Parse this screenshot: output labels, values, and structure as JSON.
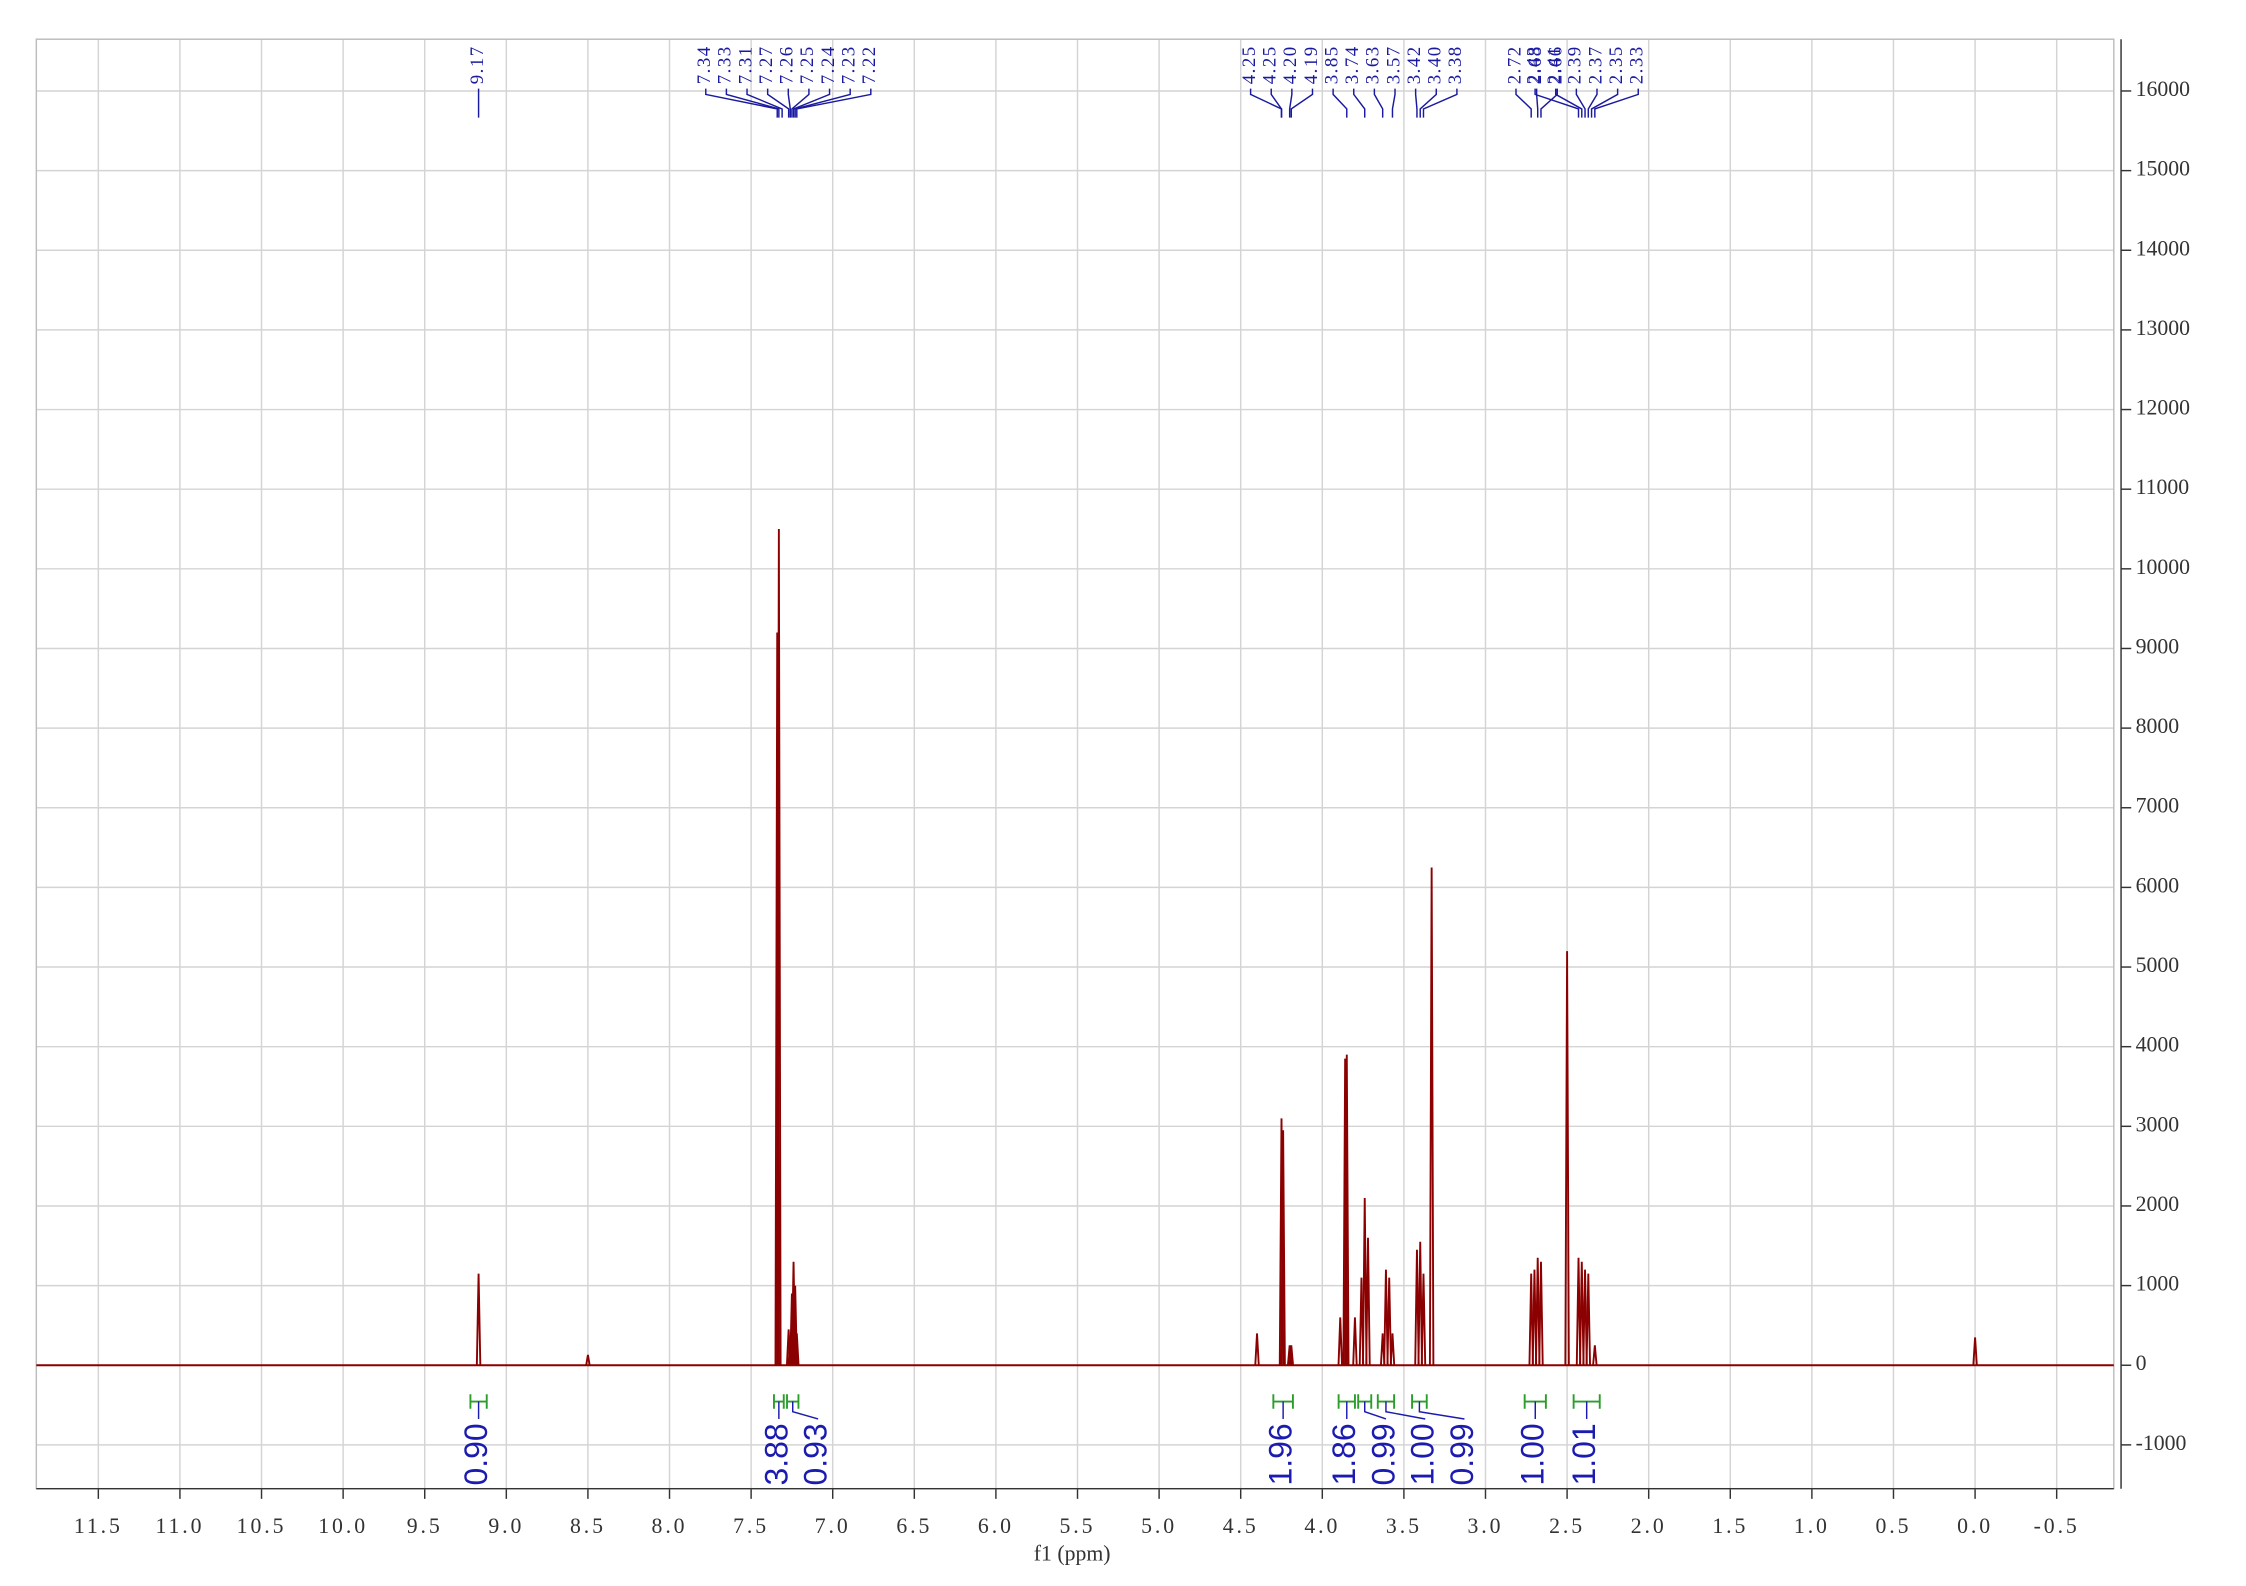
{
  "chart_data": {
    "type": "spectrum",
    "xlabel": "f1 (ppm)",
    "xlim": [
      11.88,
      -0.85
    ],
    "ylim": [
      -1550,
      16650
    ],
    "xticks": [
      {
        "value": 11.5,
        "label": "11.5"
      },
      {
        "value": 11.0,
        "label": "11.0"
      },
      {
        "value": 10.5,
        "label": "10.5"
      },
      {
        "value": 10.0,
        "label": "10.0"
      },
      {
        "value": 9.5,
        "label": "9.5"
      },
      {
        "value": 9.0,
        "label": "9.0"
      },
      {
        "value": 8.5,
        "label": "8.5"
      },
      {
        "value": 8.0,
        "label": "8.0"
      },
      {
        "value": 7.5,
        "label": "7.5"
      },
      {
        "value": 7.0,
        "label": "7.0"
      },
      {
        "value": 6.5,
        "label": "6.5"
      },
      {
        "value": 6.0,
        "label": "6.0"
      },
      {
        "value": 5.5,
        "label": "5.5"
      },
      {
        "value": 5.0,
        "label": "5.0"
      },
      {
        "value": 4.5,
        "label": "4.5"
      },
      {
        "value": 4.0,
        "label": "4.0"
      },
      {
        "value": 3.5,
        "label": "3.5"
      },
      {
        "value": 3.0,
        "label": "3.0"
      },
      {
        "value": 2.5,
        "label": "2.5"
      },
      {
        "value": 2.0,
        "label": "2.0"
      },
      {
        "value": 1.5,
        "label": "1.5"
      },
      {
        "value": 1.0,
        "label": "1.0"
      },
      {
        "value": 0.5,
        "label": "0.5"
      },
      {
        "value": 0.0,
        "label": "0.0"
      },
      {
        "value": -0.5,
        "label": "-0.5"
      }
    ],
    "yticks": [
      -1000,
      0,
      1000,
      2000,
      3000,
      4000,
      5000,
      6000,
      7000,
      8000,
      9000,
      10000,
      11000,
      12000,
      13000,
      14000,
      15000,
      16000
    ],
    "grid": true,
    "color": "#8b0000",
    "x": [
      9.17,
      8.5,
      7.34,
      7.33,
      7.27,
      7.26,
      7.25,
      7.24,
      7.23,
      7.22,
      4.4,
      4.25,
      4.24,
      4.2,
      4.19,
      3.89,
      3.86,
      3.85,
      3.8,
      3.76,
      3.74,
      3.72,
      3.63,
      3.61,
      3.59,
      3.57,
      3.42,
      3.4,
      3.38,
      3.33,
      2.72,
      2.7,
      2.68,
      2.66,
      2.5,
      2.43,
      2.41,
      2.39,
      2.37,
      2.33,
      0.0
    ],
    "values": [
      1150,
      130,
      9200,
      10500,
      450,
      300,
      900,
      1300,
      1000,
      400,
      400,
      3100,
      2950,
      250,
      250,
      600,
      3850,
      3900,
      600,
      1100,
      2100,
      1600,
      400,
      1200,
      1100,
      400,
      1450,
      1550,
      1150,
      6250,
      1150,
      1200,
      1350,
      1300,
      5200,
      1350,
      1300,
      1200,
      1150,
      250,
      350
    ],
    "peak_label_color": "#1a1aa0",
    "peak_labels": [
      [
        {
          "value": 9.17,
          "label": "9.17"
        }
      ],
      [
        {
          "value": 7.34,
          "label": "7.34"
        },
        {
          "value": 7.33,
          "label": "7.33"
        },
        {
          "value": 7.31,
          "label": "7.31"
        },
        {
          "value": 7.27,
          "label": "7.27"
        },
        {
          "value": 7.26,
          "label": "7.26"
        },
        {
          "value": 7.25,
          "label": "7.25"
        },
        {
          "value": 7.24,
          "label": "7.24"
        },
        {
          "value": 7.23,
          "label": "7.23"
        },
        {
          "value": 7.22,
          "label": "7.22"
        }
      ],
      [
        {
          "value": 4.25,
          "label": "4.25"
        },
        {
          "value": 4.25,
          "label": "4.25"
        },
        {
          "value": 4.2,
          "label": "4.20"
        },
        {
          "value": 4.19,
          "label": "4.19"
        },
        {
          "value": 3.85,
          "label": "3.85"
        },
        {
          "value": 3.74,
          "label": "3.74"
        },
        {
          "value": 3.63,
          "label": "3.63"
        },
        {
          "value": 3.57,
          "label": "3.57"
        },
        {
          "value": 3.42,
          "label": "3.42"
        },
        {
          "value": 3.4,
          "label": "3.40"
        },
        {
          "value": 3.38,
          "label": "3.38"
        }
      ],
      [
        {
          "value": 2.72,
          "label": "2.72"
        },
        {
          "value": 2.68,
          "label": "2.68"
        },
        {
          "value": 2.66,
          "label": "2.66"
        }
      ],
      [
        {
          "value": 2.43,
          "label": "2.43"
        },
        {
          "value": 2.41,
          "label": "2.41"
        },
        {
          "value": 2.39,
          "label": "2.39"
        },
        {
          "value": 2.37,
          "label": "2.37"
        },
        {
          "value": 2.35,
          "label": "2.35"
        },
        {
          "value": 2.33,
          "label": "2.33"
        }
      ]
    ],
    "integral_color": "#2a9d2a",
    "integral_label_color": "#1b1bb0",
    "integrals": [
      {
        "from": 9.22,
        "to": 9.12,
        "value": 0.9,
        "label": "0.90"
      },
      {
        "from": 7.36,
        "to": 7.3,
        "value": 3.88,
        "label": "3.88"
      },
      {
        "from": 7.28,
        "to": 7.21,
        "value": 0.93,
        "label": "0.93"
      },
      {
        "from": 4.3,
        "to": 4.18,
        "value": 1.96,
        "label": "1.96"
      },
      {
        "from": 3.9,
        "to": 3.8,
        "value": 1.86,
        "label": "1.86"
      },
      {
        "from": 3.78,
        "to": 3.7,
        "value": 0.99,
        "label": "0.99"
      },
      {
        "from": 3.66,
        "to": 3.56,
        "value": 1.0,
        "label": "1.00"
      },
      {
        "from": 3.45,
        "to": 3.36,
        "value": 0.99,
        "label": "0.99"
      },
      {
        "from": 2.76,
        "to": 2.63,
        "value": 1.0,
        "label": "1.00"
      },
      {
        "from": 2.46,
        "to": 2.3,
        "value": 1.01,
        "label": "1.01"
      }
    ]
  }
}
